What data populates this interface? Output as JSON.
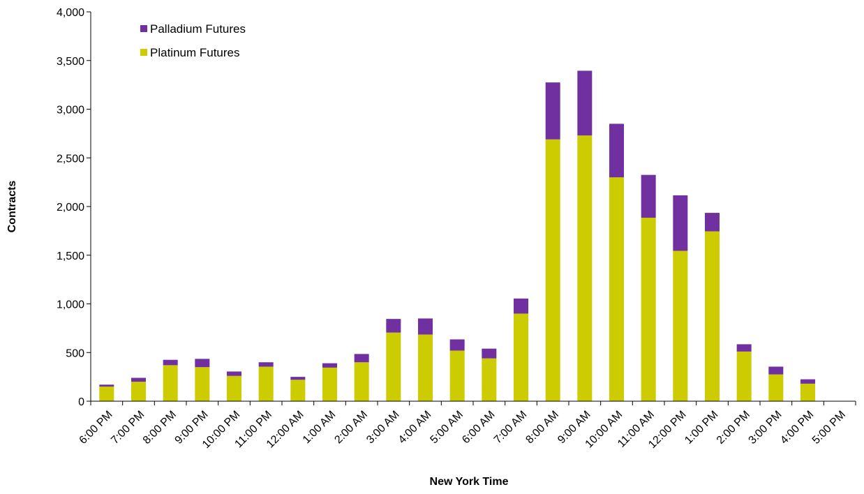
{
  "chart_data": {
    "type": "bar",
    "stacked": true,
    "title": "",
    "xlabel": "New York Time",
    "ylabel": "Contracts",
    "ylim": [
      0,
      4000
    ],
    "yticks": [
      "0",
      "500",
      "1,000",
      "1,500",
      "2,000",
      "2,500",
      "3,000",
      "3,500",
      "4,000"
    ],
    "ytick_values": [
      0,
      500,
      1000,
      1500,
      2000,
      2500,
      3000,
      3500,
      4000
    ],
    "grid": false,
    "legend_position": "top-left",
    "categories": [
      "6:00 PM",
      "7:00 PM",
      "8:00 PM",
      "9:00 PM",
      "10:00 PM",
      "11:00 PM",
      "12:00 AM",
      "1:00 AM",
      "2:00 AM",
      "3:00 AM",
      "4:00 AM",
      "5:00 AM",
      "6:00 AM",
      "7:00 AM",
      "8:00 AM",
      "9:00 AM",
      "10:00 AM",
      "11:00 AM",
      "12:00 PM",
      "1:00 PM",
      "2:00 PM",
      "3:00 PM",
      "4:00 PM",
      "5:00 PM"
    ],
    "series": [
      {
        "name": "Platinum Futures",
        "color": "#cccc00",
        "values": [
          150,
          200,
          370,
          350,
          260,
          355,
          220,
          345,
          400,
          705,
          685,
          520,
          440,
          900,
          2690,
          2730,
          2300,
          1885,
          1545,
          1745,
          510,
          275,
          180,
          0
        ]
      },
      {
        "name": "Palladium Futures",
        "color": "#7030a0",
        "values": [
          20,
          40,
          55,
          85,
          45,
          45,
          30,
          45,
          85,
          140,
          165,
          115,
          100,
          155,
          585,
          665,
          550,
          440,
          570,
          190,
          75,
          80,
          45,
          0
        ]
      }
    ],
    "legend": [
      "Palladium Futures",
      "Platinum Futures"
    ]
  }
}
